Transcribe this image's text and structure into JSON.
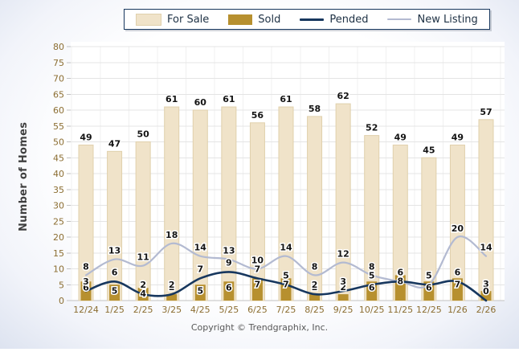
{
  "chart_data": {
    "type": "combo-bar-line",
    "title": "",
    "ylabel": "Number of Homes",
    "ylim": [
      0,
      80
    ],
    "ytick_step": 5,
    "grid": true,
    "legend_position": "top",
    "categories": [
      "12/24",
      "1/25",
      "2/25",
      "3/25",
      "4/25",
      "5/25",
      "6/25",
      "7/25",
      "8/25",
      "9/25",
      "10/25",
      "11/25",
      "12/25",
      "1/26",
      "2/26"
    ],
    "series": [
      {
        "name": "For Sale",
        "type": "bar",
        "color": "#F0E3C9",
        "values": [
          49,
          47,
          50,
          61,
          60,
          61,
          56,
          61,
          58,
          62,
          52,
          49,
          45,
          49,
          57
        ]
      },
      {
        "name": "Sold",
        "type": "bar",
        "color": "#B7902F",
        "values": [
          6,
          5,
          4,
          2,
          5,
          6,
          7,
          7,
          2,
          2,
          6,
          8,
          6,
          7,
          3
        ]
      },
      {
        "name": "Pended",
        "type": "line",
        "color": "#17375E",
        "values": [
          3,
          6,
          2,
          2,
          7,
          9,
          7,
          5,
          2,
          3,
          5,
          6,
          5,
          6,
          0
        ]
      },
      {
        "name": "New Listing",
        "type": "line",
        "color": "#B3BAD1",
        "values": [
          8,
          13,
          11,
          18,
          14,
          13,
          10,
          14,
          8,
          12,
          8,
          6,
          5,
          20,
          14
        ]
      }
    ]
  },
  "colors": {
    "grid_line": "#E4E4E4",
    "grid_line_vertical": "#F0F0F0",
    "axis_line": "#C2C2C2",
    "tick_text": "#8C6E32",
    "for_sale_bar_border": "#E0D0AC",
    "legend_border": "#17375E"
  },
  "footer": {
    "text": "Copyright © Trendgraphix, Inc."
  }
}
